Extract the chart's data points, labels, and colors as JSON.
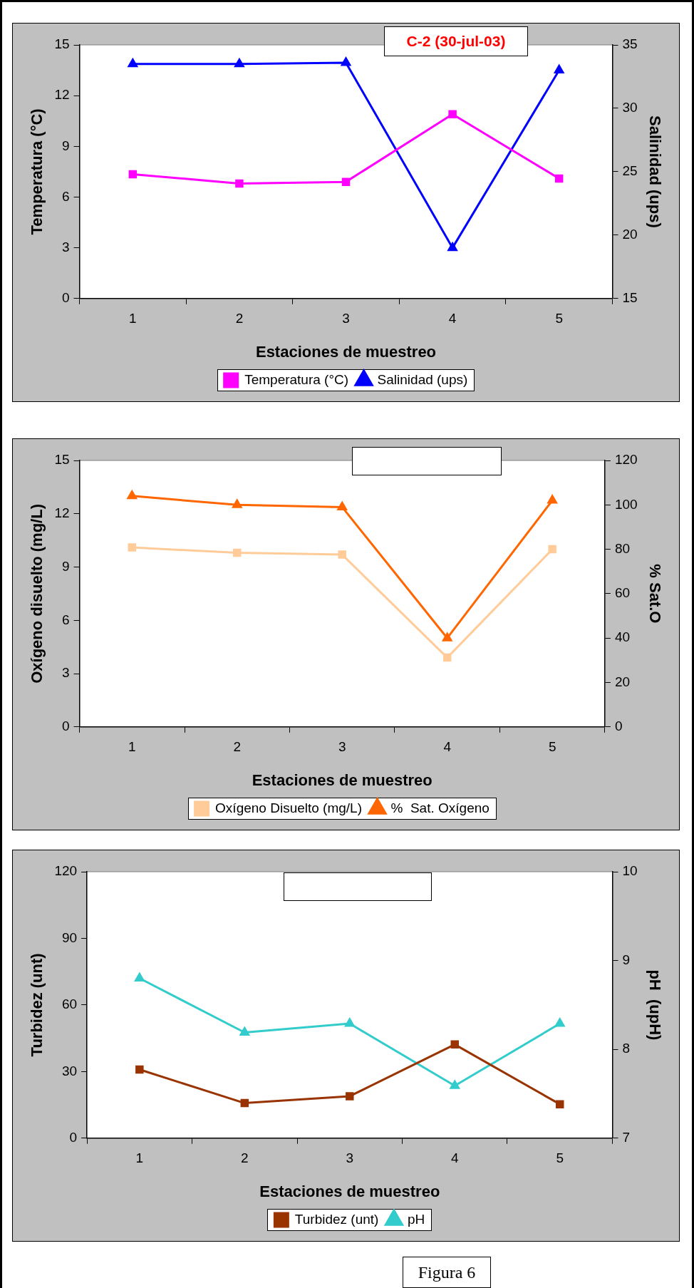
{
  "chart_data": [
    {
      "type": "line",
      "title": "C-2 (30-jul-03)",
      "xlabel": "Estaciones de muestreo",
      "ylabel": "Temperatura (°C)",
      "y2label": "Salinidad (ups)",
      "categories": [
        "1",
        "2",
        "3",
        "4",
        "5"
      ],
      "series": [
        {
          "name": "Temperatura (°C)",
          "color": "#ff00ff",
          "marker": "square",
          "values": [
            7.35,
            6.8,
            6.9,
            10.9,
            7.1
          ]
        },
        {
          "name": "Salinidad (ups)",
          "color": "#0000ff",
          "marker": "triangle",
          "axis": "y2",
          "values": [
            33.5,
            33.5,
            33.6,
            19.0,
            33.0
          ]
        }
      ],
      "ylim": [
        0,
        15
      ],
      "yticks": [
        0,
        3,
        6,
        9,
        12,
        15
      ],
      "y2lim": [
        15,
        35
      ],
      "y2ticks": [
        15,
        20,
        25,
        30,
        35
      ],
      "legend": "bottom",
      "grid": false
    },
    {
      "type": "line",
      "xlabel": "Estaciones de muestreo",
      "ylabel": "Oxígeno disuelto (mg/L)",
      "y2label": "% Sat.O",
      "categories": [
        "1",
        "2",
        "3",
        "4",
        "5"
      ],
      "series": [
        {
          "name": "Oxígeno Disuelto (mg/L)",
          "color": "#ffcc99",
          "marker": "square",
          "values": [
            10.1,
            9.8,
            9.7,
            3.9,
            10.0
          ]
        },
        {
          "name": "%  Sat. Oxígeno",
          "color": "#ff6600",
          "marker": "triangle",
          "axis": "y2",
          "values": [
            104,
            100,
            99,
            40,
            102
          ]
        }
      ],
      "ylim": [
        0,
        15
      ],
      "yticks": [
        0,
        3,
        6,
        9,
        12,
        15
      ],
      "y2lim": [
        0,
        120
      ],
      "y2ticks": [
        0,
        20,
        40,
        60,
        80,
        100,
        120
      ],
      "legend": "bottom",
      "grid": false
    },
    {
      "type": "line",
      "xlabel": "Estaciones de muestreo",
      "ylabel": "Turbidez (unt)",
      "y2label": "pH  (upH)",
      "categories": [
        "1",
        "2",
        "3",
        "4",
        "5"
      ],
      "series": [
        {
          "name": "Turbidez (unt)",
          "color": "#993300",
          "marker": "square",
          "values": [
            30.9,
            15.8,
            18.9,
            42.2,
            15.3
          ]
        },
        {
          "name": "pH",
          "color": "#33cccc",
          "marker": "triangle",
          "axis": "y2",
          "values": [
            8.8,
            8.19,
            8.29,
            7.59,
            8.29
          ]
        }
      ],
      "ylim": [
        0,
        120
      ],
      "yticks": [
        0,
        30,
        60,
        90,
        120
      ],
      "y2lim": [
        7,
        10
      ],
      "y2ticks": [
        7,
        8,
        9,
        10
      ],
      "legend": "bottom",
      "grid": false,
      "annotations": [
        "Figura 6"
      ]
    }
  ]
}
